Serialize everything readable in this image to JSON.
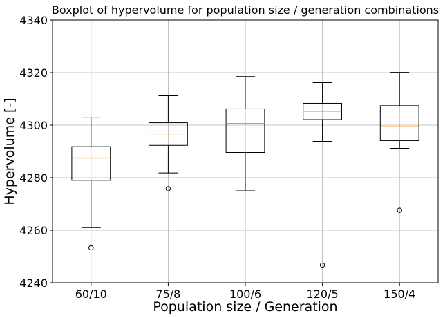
{
  "chart_data": {
    "type": "boxplot",
    "title": "Boxplot of hypervolume for population size / generation combinations",
    "xlabel": "Population size / Generation",
    "ylabel": "Hypervolume [-]",
    "ylim": [
      4240,
      4340
    ],
    "yticks": [
      4240,
      4260,
      4280,
      4300,
      4320,
      4340
    ],
    "grid": true,
    "colors": {
      "box": "#000000",
      "median": "#ff7f0e",
      "grid": "#b0b0b0"
    },
    "categories": [
      "60/10",
      "75/8",
      "100/6",
      "120/5",
      "150/4"
    ],
    "boxes": [
      {
        "whisker_low": 4261,
        "q1": 4279,
        "median": 4287.5,
        "q3": 4291.8,
        "whisker_high": 4302.8,
        "outliers": [
          4253.3
        ]
      },
      {
        "whisker_low": 4281.8,
        "q1": 4292.3,
        "median": 4296.2,
        "q3": 4300.9,
        "whisker_high": 4311.2,
        "outliers": [
          4275.8
        ]
      },
      {
        "whisker_low": 4275,
        "q1": 4289.6,
        "median": 4300.6,
        "q3": 4306.2,
        "whisker_high": 4318.5,
        "outliers": []
      },
      {
        "whisker_low": 4293.8,
        "q1": 4302.1,
        "median": 4305.3,
        "q3": 4308.3,
        "whisker_high": 4316.2,
        "outliers": [
          4246.7
        ]
      },
      {
        "whisker_low": 4291.2,
        "q1": 4294.1,
        "median": 4299.4,
        "q3": 4307.4,
        "whisker_high": 4320.1,
        "outliers": [
          4267.6
        ]
      }
    ]
  }
}
